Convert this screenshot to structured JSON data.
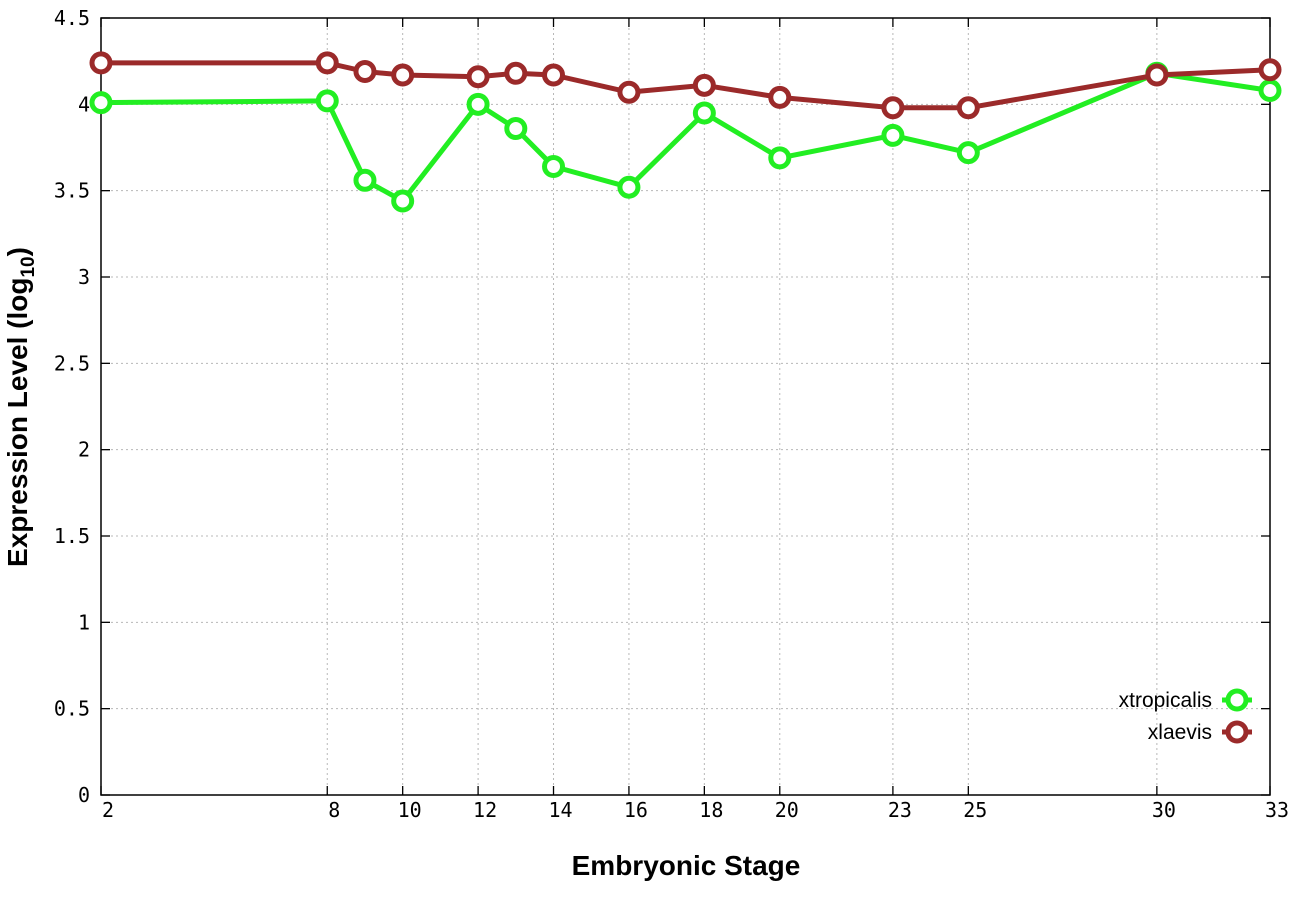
{
  "chart_data": {
    "type": "line",
    "xlabel": "Embryonic Stage",
    "ylabel": "Expression Level (log",
    "ylabel_subscript": "10",
    "ylabel_suffix": ")",
    "xlim": [
      2,
      33
    ],
    "ylim": [
      0,
      4.5
    ],
    "x_ticks": [
      2,
      8,
      10,
      12,
      14,
      16,
      18,
      20,
      23,
      25,
      30,
      33
    ],
    "x_tick_labels": [
      "2",
      "8",
      "10",
      "12",
      "14",
      "16",
      "18",
      "20",
      "23",
      "25",
      "30",
      "33"
    ],
    "y_ticks": [
      0,
      0.5,
      1,
      1.5,
      2,
      2.5,
      3,
      3.5,
      4,
      4.5
    ],
    "y_tick_labels": [
      "0",
      "0.5",
      "1",
      "1.5",
      "2",
      "2.5",
      "3",
      "3.5",
      "4",
      "4.5"
    ],
    "grid": true,
    "legend_position": "bottom-right",
    "x": [
      2,
      8,
      9,
      10,
      12,
      13,
      14,
      16,
      18,
      20,
      23,
      25,
      30,
      33
    ],
    "series": [
      {
        "name": "xtropicalis",
        "color": "#22ee22",
        "values": [
          4.01,
          4.02,
          3.56,
          3.44,
          4.0,
          3.86,
          3.64,
          3.52,
          3.95,
          3.69,
          3.82,
          3.72,
          4.18,
          4.08
        ]
      },
      {
        "name": "xlaevis",
        "color": "#9b2a2a",
        "values": [
          4.24,
          4.24,
          4.19,
          4.17,
          4.16,
          4.18,
          4.17,
          4.07,
          4.11,
          4.04,
          3.98,
          3.98,
          4.17,
          4.2
        ]
      }
    ]
  }
}
